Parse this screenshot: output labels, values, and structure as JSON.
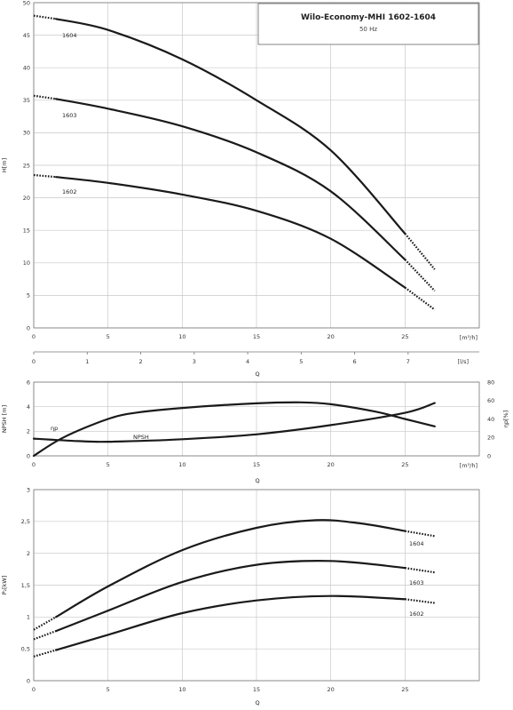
{
  "chart_data": [
    {
      "type": "line",
      "title": "Wilo-Economy-MHI 1602-1604",
      "subtitle": "50 Hz",
      "ylabel": "H[m]",
      "x_unit_label": "[m³/h]",
      "x2_unit_label": "[l/s]",
      "xlabel": "Q",
      "xlim": [
        0,
        30
      ],
      "ylim": [
        0,
        50
      ],
      "x2lim": [
        0,
        8.33
      ],
      "xticks": [
        0,
        5,
        10,
        15,
        20,
        25
      ],
      "x2ticks": [
        0,
        1,
        2,
        3,
        4,
        5,
        6,
        7
      ],
      "yticks": [
        0,
        5,
        10,
        15,
        20,
        25,
        30,
        35,
        40,
        45,
        50
      ],
      "grid": true,
      "series": [
        {
          "name": "1604",
          "x": [
            1.5,
            5,
            10,
            15,
            20,
            25
          ],
          "y": [
            47.5,
            45.8,
            41.3,
            35,
            27.3,
            14.5
          ],
          "ext_start": {
            "x": [
              0,
              1.5
            ],
            "y": [
              48,
              47.5
            ]
          },
          "ext_end": {
            "x": [
              25,
              27
            ],
            "y": [
              14.5,
              9
            ]
          }
        },
        {
          "name": "1603",
          "x": [
            1.5,
            5,
            10,
            15,
            20,
            25
          ],
          "y": [
            35.2,
            33.7,
            31,
            27,
            21,
            10.5
          ],
          "ext_start": {
            "x": [
              0,
              1.5
            ],
            "y": [
              35.7,
              35.2
            ]
          },
          "ext_end": {
            "x": [
              25,
              27
            ],
            "y": [
              10.5,
              5.7
            ]
          }
        },
        {
          "name": "1602",
          "x": [
            1.5,
            5,
            10,
            15,
            20,
            25
          ],
          "y": [
            23.2,
            22.3,
            20.5,
            18,
            13.7,
            6.2
          ],
          "ext_start": {
            "x": [
              0,
              1.5
            ],
            "y": [
              23.5,
              23.2
            ]
          },
          "ext_end": {
            "x": [
              25,
              27
            ],
            "y": [
              6.2,
              2.8
            ]
          }
        }
      ]
    },
    {
      "type": "line",
      "ylabel": "NPSH [m]",
      "y2label": "ηp[%]",
      "x_unit_label": "[m³/h]",
      "xlabel": "Q",
      "xlim": [
        0,
        30
      ],
      "ylim": [
        0,
        6
      ],
      "y2lim": [
        0,
        80
      ],
      "xticks": [
        0,
        5,
        10,
        15,
        20,
        25
      ],
      "yticks": [
        0,
        2,
        4,
        6
      ],
      "y2ticks": [
        0,
        20,
        40,
        60,
        80
      ],
      "grid": true,
      "series": [
        {
          "name": "ηp",
          "axis": "right",
          "x": [
            0,
            2,
            5,
            7,
            10,
            15,
            18,
            20,
            23,
            25,
            27
          ],
          "y": [
            0,
            20,
            40,
            47,
            52,
            57,
            58,
            56,
            48,
            40,
            32
          ]
        },
        {
          "name": "NPSH",
          "axis": "left",
          "x": [
            0,
            3,
            5,
            10,
            15,
            20,
            25,
            27
          ],
          "y": [
            1.4,
            1.2,
            1.15,
            1.35,
            1.75,
            2.5,
            3.5,
            4.3
          ]
        }
      ]
    },
    {
      "type": "line",
      "ylabel": "P₂[kW]",
      "xlabel": "Q",
      "xlim": [
        0,
        30
      ],
      "ylim": [
        0,
        3
      ],
      "xticks": [
        0,
        5,
        10,
        15,
        20,
        25
      ],
      "yticks": [
        0,
        0.5,
        1,
        1.5,
        2,
        2.5,
        3
      ],
      "ytick_labels": [
        "0",
        "0,5",
        "1",
        "1,5",
        "2",
        "2,5",
        "3"
      ],
      "grid": true,
      "series": [
        {
          "name": "1604",
          "x": [
            1.5,
            5,
            10,
            15,
            19,
            22,
            25
          ],
          "y": [
            1.0,
            1.48,
            2.05,
            2.4,
            2.52,
            2.47,
            2.35
          ],
          "ext_start": {
            "x": [
              0,
              1.5
            ],
            "y": [
              0.8,
              1.0
            ]
          },
          "ext_end": {
            "x": [
              25,
              27
            ],
            "y": [
              2.35,
              2.27
            ]
          }
        },
        {
          "name": "1603",
          "x": [
            1.5,
            5,
            10,
            15,
            20,
            25
          ],
          "y": [
            0.78,
            1.1,
            1.55,
            1.82,
            1.88,
            1.77
          ],
          "ext_start": {
            "x": [
              0,
              1.5
            ],
            "y": [
              0.65,
              0.78
            ]
          },
          "ext_end": {
            "x": [
              25,
              27
            ],
            "y": [
              1.77,
              1.7
            ]
          }
        },
        {
          "name": "1602",
          "x": [
            1.5,
            5,
            10,
            15,
            20,
            25
          ],
          "y": [
            0.48,
            0.72,
            1.06,
            1.26,
            1.33,
            1.28
          ],
          "ext_start": {
            "x": [
              0,
              1.5
            ],
            "y": [
              0.38,
              0.48
            ]
          },
          "ext_end": {
            "x": [
              25,
              27
            ],
            "y": [
              1.28,
              1.22
            ]
          }
        }
      ]
    }
  ]
}
